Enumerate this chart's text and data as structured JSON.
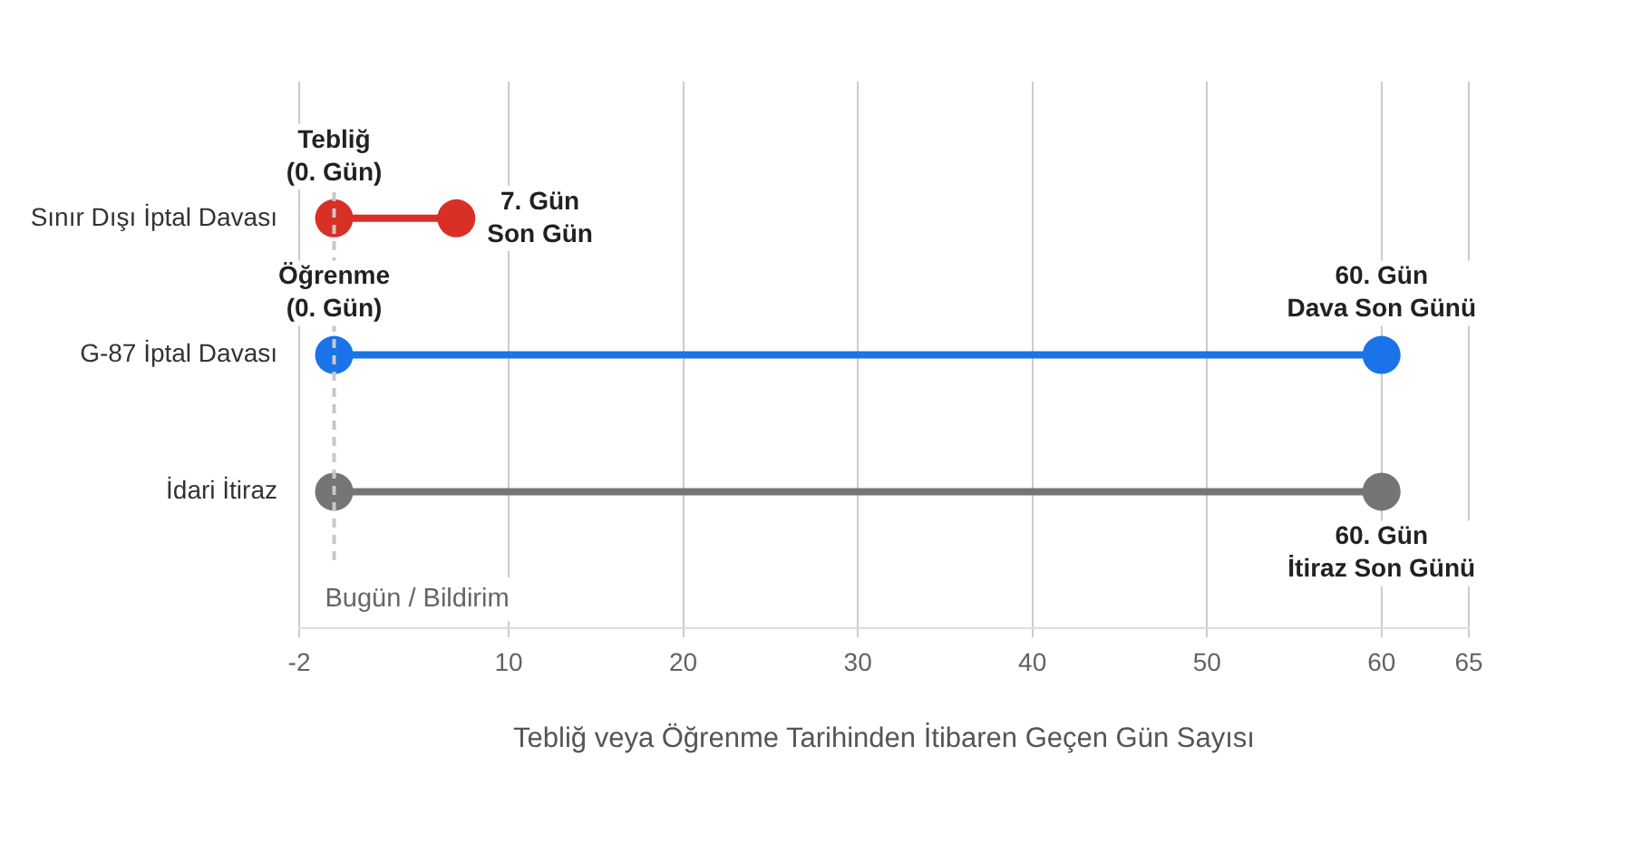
{
  "chart_data": {
    "type": "lollipop",
    "orientation": "horizontal",
    "categories": [
      "Sınır Dışı İptal Davası",
      "G-87 İptal Davası",
      "İdari İtiraz"
    ],
    "series": [
      {
        "values": [
          7,
          60,
          60
        ],
        "colors": [
          "#d93025",
          "#1a73e8",
          "#757575"
        ]
      },
      {
        "type": "scatter",
        "values": [
          0,
          0,
          0
        ],
        "colors": [
          "#d93025",
          "#1a73e8",
          "#757575"
        ]
      }
    ],
    "marker": "circle",
    "xlabel": "Tebliğ veya Öğrenme Tarihinden İtibaren Geçen Gün Sayısı",
    "xlim": [
      -2,
      65
    ],
    "xticks": [
      -2,
      10,
      20,
      30,
      40,
      50,
      60,
      65
    ],
    "grid": "x",
    "ref_lines": [
      {
        "axis": "x",
        "value": 0,
        "label": "Bugün / Bildirim",
        "color": "#c8c8c8",
        "line_style": "dashed"
      }
    ],
    "annotations": [
      {
        "text": "Tebliğ\n(0. Gün)",
        "x": 0,
        "y": "Sınır Dışı İptal Davası"
      },
      {
        "text": "7. Gün\nSon Gün",
        "x": 7,
        "y": "Sınır Dışı İptal Davası"
      },
      {
        "text": "Öğrenme\n(0. Gün)",
        "x": 0,
        "y": "G-87 İptal Davası"
      },
      {
        "text": "60. Gün\nDava Son Günü",
        "x": 60,
        "y": "G-87 İptal Davası"
      },
      {
        "text": "60. Gün\nİtiraz Son Günü",
        "x": 60,
        "y": "İdari İtiraz"
      }
    ]
  }
}
